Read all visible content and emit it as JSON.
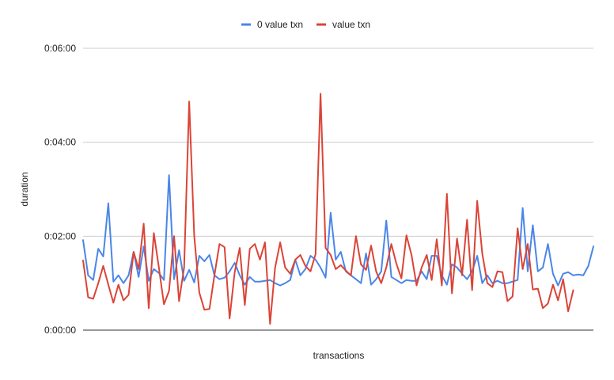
{
  "chart_data": {
    "type": "line",
    "title": "",
    "xlabel": "transactions",
    "ylabel": "duration",
    "y_unit": "seconds",
    "ylim": [
      0,
      360
    ],
    "y_ticks": [
      0,
      120,
      240,
      360
    ],
    "y_tick_labels": [
      "0:00:00",
      "0:02:00",
      "0:04:00",
      "0:06:00"
    ],
    "x_tick_labels": [],
    "grid": true,
    "legend_position": "top",
    "series": [
      {
        "name": "0 value txn",
        "color": "#4a86e8",
        "values": [
          115,
          70,
          64,
          104,
          94,
          162,
          62,
          70,
          60,
          70,
          100,
          68,
          107,
          63,
          78,
          73,
          64,
          198,
          65,
          102,
          63,
          77,
          61,
          95,
          88,
          96,
          70,
          65,
          67,
          75,
          86,
          70,
          58,
          68,
          62,
          62,
          63,
          64,
          60,
          57,
          60,
          64,
          90,
          70,
          78,
          95,
          90,
          80,
          67,
          150,
          90,
          100,
          75,
          70,
          65,
          60,
          98,
          58,
          65,
          75,
          140,
          68,
          64,
          60,
          64,
          63,
          63,
          75,
          65,
          95,
          95,
          70,
          58,
          84,
          80,
          72,
          65,
          75,
          95,
          60,
          70,
          60,
          63,
          60,
          60,
          62,
          64,
          156,
          75,
          134,
          75,
          80,
          110,
          72,
          57,
          72,
          74,
          70,
          71,
          70,
          82,
          107
        ]
      },
      {
        "name": "value txn",
        "color": "#db4437",
        "values": [
          89,
          42,
          40,
          60,
          82,
          58,
          35,
          58,
          38,
          45,
          100,
          78,
          136,
          28,
          124,
          80,
          33,
          50,
          120,
          37,
          80,
          292,
          120,
          48,
          26,
          27,
          70,
          110,
          106,
          15,
          74,
          105,
          32,
          104,
          110,
          90,
          112,
          8,
          80,
          112,
          80,
          72,
          90,
          96,
          82,
          75,
          97,
          302,
          105,
          96,
          78,
          83,
          76,
          70,
          120,
          84,
          77,
          108,
          75,
          60,
          80,
          110,
          85,
          66,
          121,
          96,
          57,
          80,
          96,
          64,
          116,
          57,
          174,
          47,
          117,
          70,
          141,
          51,
          165,
          98,
          60,
          55,
          75,
          74,
          37,
          43,
          130,
          78,
          110,
          52,
          53,
          28,
          34,
          58,
          38,
          65,
          24,
          51
        ]
      }
    ]
  }
}
